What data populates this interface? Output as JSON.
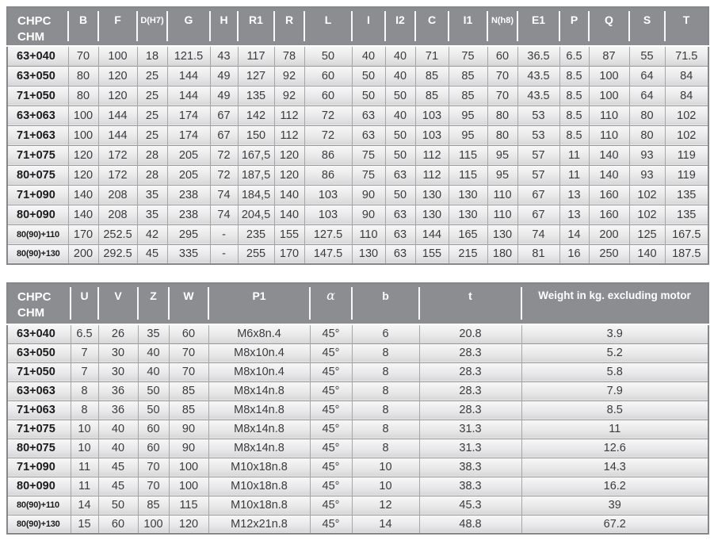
{
  "colors": {
    "header_bg": "#8b8d90",
    "header_text": "#ffffff",
    "row_gradient_top": "#f7f7f8",
    "row_gradient_bottom": "#d7d7d9",
    "grid_border": "#a6a6a8",
    "outer_border": "#85878a",
    "value_text": "#3b3b3d",
    "label_text": "#1b1b1d"
  },
  "table1": {
    "header": [
      "CHPC\nCHM",
      "B",
      "F",
      "D(H7)",
      "G",
      "H",
      "R1",
      "R",
      "L",
      "I",
      "I2",
      "C",
      "I1",
      "N(h8)",
      "E1",
      "P",
      "Q",
      "S",
      "T"
    ],
    "rows": [
      [
        "63+040",
        "70",
        "100",
        "18",
        "121.5",
        "43",
        "117",
        "78",
        "50",
        "40",
        "40",
        "71",
        "75",
        "60",
        "36.5",
        "6.5",
        "87",
        "55",
        "71.5"
      ],
      [
        "63+050",
        "80",
        "120",
        "25",
        "144",
        "49",
        "127",
        "92",
        "60",
        "50",
        "40",
        "85",
        "85",
        "70",
        "43.5",
        "8.5",
        "100",
        "64",
        "84"
      ],
      [
        "71+050",
        "80",
        "120",
        "25",
        "144",
        "49",
        "135",
        "92",
        "60",
        "50",
        "50",
        "85",
        "85",
        "70",
        "43.5",
        "8.5",
        "100",
        "64",
        "84"
      ],
      [
        "63+063",
        "100",
        "144",
        "25",
        "174",
        "67",
        "142",
        "112",
        "72",
        "63",
        "40",
        "103",
        "95",
        "80",
        "53",
        "8.5",
        "110",
        "80",
        "102"
      ],
      [
        "71+063",
        "100",
        "144",
        "25",
        "174",
        "67",
        "150",
        "112",
        "72",
        "63",
        "50",
        "103",
        "95",
        "80",
        "53",
        "8.5",
        "110",
        "80",
        "102"
      ],
      [
        "71+075",
        "120",
        "172",
        "28",
        "205",
        "72",
        "167,5",
        "120",
        "86",
        "75",
        "50",
        "112",
        "115",
        "95",
        "57",
        "11",
        "140",
        "93",
        "119"
      ],
      [
        "80+075",
        "120",
        "172",
        "28",
        "205",
        "72",
        "187,5",
        "120",
        "86",
        "75",
        "63",
        "112",
        "115",
        "95",
        "57",
        "11",
        "140",
        "93",
        "119"
      ],
      [
        "71+090",
        "140",
        "208",
        "35",
        "238",
        "74",
        "184,5",
        "140",
        "103",
        "90",
        "50",
        "130",
        "130",
        "110",
        "67",
        "13",
        "160",
        "102",
        "135"
      ],
      [
        "80+090",
        "140",
        "208",
        "35",
        "238",
        "74",
        "204,5",
        "140",
        "103",
        "90",
        "63",
        "130",
        "130",
        "110",
        "67",
        "13",
        "160",
        "102",
        "135"
      ],
      [
        "80(90)+110",
        "170",
        "252.5",
        "42",
        "295",
        "-",
        "235",
        "155",
        "127.5",
        "110",
        "63",
        "144",
        "165",
        "130",
        "74",
        "14",
        "200",
        "125",
        "167.5"
      ],
      [
        "80(90)+130",
        "200",
        "292.5",
        "45",
        "335",
        "-",
        "255",
        "170",
        "147.5",
        "130",
        "63",
        "155",
        "215",
        "180",
        "81",
        "16",
        "250",
        "140",
        "187.5"
      ]
    ]
  },
  "table2": {
    "header": [
      "CHPC\nCHM",
      "U",
      "V",
      "Z",
      "W",
      "P1",
      "α",
      "b",
      "t",
      "Weight in kg. excluding motor"
    ],
    "rows": [
      [
        "63+040",
        "6.5",
        "26",
        "35",
        "60",
        "M6x8n.4",
        "45°",
        "6",
        "20.8",
        "3.9"
      ],
      [
        "63+050",
        "7",
        "30",
        "40",
        "70",
        "M8x10n.4",
        "45°",
        "8",
        "28.3",
        "5.2"
      ],
      [
        "71+050",
        "7",
        "30",
        "40",
        "70",
        "M8x10n.4",
        "45°",
        "8",
        "28.3",
        "5.8"
      ],
      [
        "63+063",
        "8",
        "36",
        "50",
        "85",
        "M8x14n.8",
        "45°",
        "8",
        "28.3",
        "7.9"
      ],
      [
        "71+063",
        "8",
        "36",
        "50",
        "85",
        "M8x14n.8",
        "45°",
        "8",
        "28.3",
        "8.5"
      ],
      [
        "71+075",
        "10",
        "40",
        "60",
        "90",
        "M8x14n.8",
        "45°",
        "8",
        "31.3",
        "11"
      ],
      [
        "80+075",
        "10",
        "40",
        "60",
        "90",
        "M8x14n.8",
        "45°",
        "8",
        "31.3",
        "12.6"
      ],
      [
        "71+090",
        "11",
        "45",
        "70",
        "100",
        "M10x18n.8",
        "45°",
        "10",
        "38.3",
        "14.3"
      ],
      [
        "80+090",
        "11",
        "45",
        "70",
        "100",
        "M10x18n.8",
        "45°",
        "10",
        "38.3",
        "16.2"
      ],
      [
        "80(90)+110",
        "14",
        "50",
        "85",
        "115",
        "M10x18n.8",
        "45°",
        "12",
        "45.3",
        "39"
      ],
      [
        "80(90)+130",
        "15",
        "60",
        "100",
        "120",
        "M12x21n.8",
        "45°",
        "14",
        "48.8",
        "67.2"
      ]
    ]
  }
}
